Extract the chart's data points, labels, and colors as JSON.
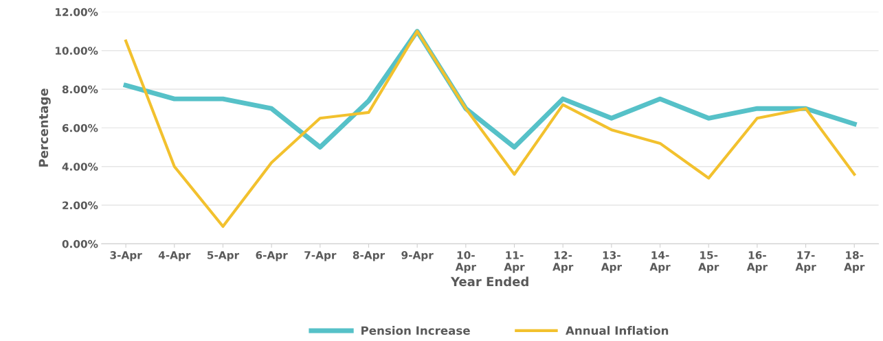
{
  "chart_data": {
    "type": "line",
    "xlabel": "Year Ended",
    "ylabel": "Percentage",
    "categories": [
      "3-Apr",
      "4-Apr",
      "5-Apr",
      "6-Apr",
      "7-Apr",
      "8-Apr",
      "9-Apr",
      "10-Apr",
      "11-Apr",
      "12-Apr",
      "13-Apr",
      "14-Apr",
      "15-Apr",
      "16-Apr",
      "17-Apr",
      "18-Apr"
    ],
    "series": [
      {
        "name": "Pension Increase",
        "color": "#56c1c8",
        "values": [
          8.2,
          7.5,
          7.5,
          7.0,
          5.0,
          7.4,
          11.0,
          7.0,
          5.0,
          7.5,
          6.5,
          7.5,
          6.5,
          7.0,
          7.0,
          6.2
        ]
      },
      {
        "name": "Annual Inflation",
        "color": "#f2c12e",
        "values": [
          10.5,
          4.0,
          0.9,
          4.2,
          6.5,
          6.8,
          11.0,
          7.0,
          3.6,
          7.2,
          5.9,
          5.2,
          3.4,
          6.5,
          7.0,
          3.6
        ]
      }
    ],
    "ylim": [
      0,
      12
    ],
    "yticks": [
      {
        "value": 0,
        "label": "0.00%"
      },
      {
        "value": 2,
        "label": "2.00%"
      },
      {
        "value": 4,
        "label": "4.00%"
      },
      {
        "value": 6,
        "label": "6.00%"
      },
      {
        "value": 8,
        "label": "8.00%"
      },
      {
        "value": 10,
        "label": "10.00%"
      },
      {
        "value": 12,
        "label": "12.00%"
      }
    ],
    "grid": "y",
    "legend": "bottom",
    "marker": "none",
    "line_style": "solid"
  }
}
